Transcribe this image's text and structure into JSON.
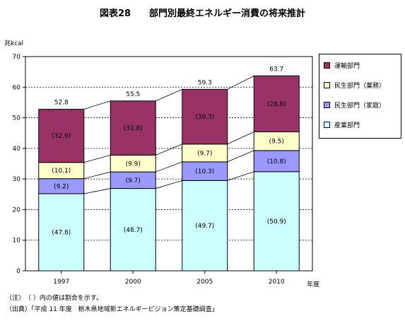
{
  "chart_data": {
    "type": "bar",
    "stacked": true,
    "title": "図表28　　部門別最終エネルギー消費の将来推計",
    "ylabel": "兆kcal",
    "xlabel": "年度",
    "ylim": [
      0,
      70
    ],
    "yticks": [
      0,
      10,
      20,
      30,
      40,
      50,
      60,
      70
    ],
    "grid": true,
    "legend_position": "right",
    "categories": [
      "1997",
      "2000",
      "2005",
      "2010"
    ],
    "totals": [
      "52.8",
      "55.5",
      "59.3",
      "63.7"
    ],
    "series": [
      {
        "name": "産業部門",
        "color": "#ccffff",
        "values": [
          25.2,
          26.9,
          29.5,
          32.4
        ],
        "labels": [
          "(47.8)",
          "(48.7)",
          "(49.7)",
          "(50.9)"
        ]
      },
      {
        "name": "民生部門（家庭）",
        "color": "#9999ff",
        "values": [
          4.9,
          5.4,
          6.1,
          6.9
        ],
        "labels": [
          "(9.2)",
          "(9.7)",
          "(10.3)",
          "(10.8)"
        ]
      },
      {
        "name": "民生部門（業務）",
        "color": "#ffffcc",
        "values": [
          5.3,
          5.5,
          5.8,
          6.1
        ],
        "labels": [
          "(10.1)",
          "(9.9)",
          "(9.7)",
          "(9.5)"
        ]
      },
      {
        "name": "運輸部門",
        "color": "#993366",
        "values": [
          17.4,
          17.7,
          17.9,
          18.3
        ],
        "labels": [
          "(32.9)",
          "(31.8)",
          "(30.3)",
          "(28.8)"
        ]
      }
    ]
  },
  "notes": [
    "（注）　（ ）内の値は割合を示す。",
    "（出典）「平成 11 年度　栃木県地域新エネルギービジョン策定基礎調査」"
  ]
}
